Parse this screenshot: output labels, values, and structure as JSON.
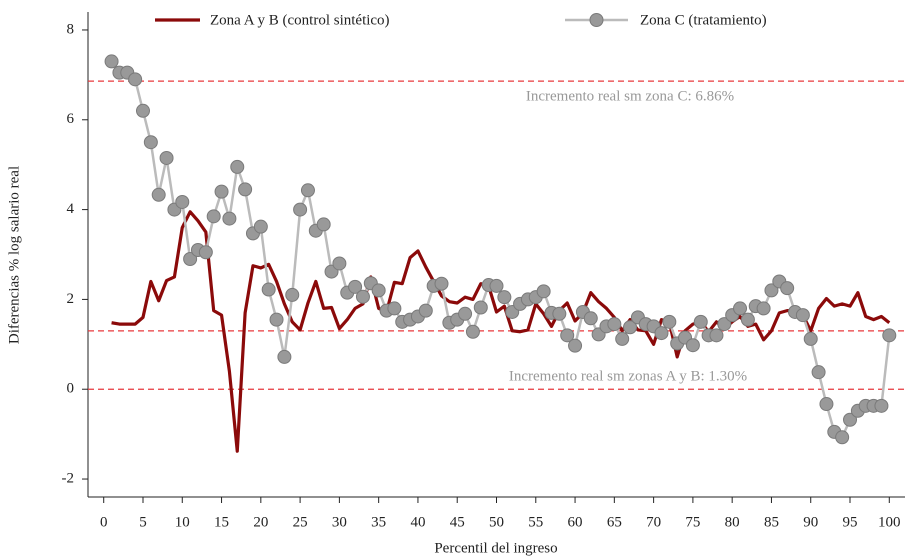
{
  "chart_data": {
    "type": "line",
    "xlabel": "Percentil del ingreso",
    "ylabel": "Diferencias % log salario real",
    "x": [
      1,
      2,
      3,
      4,
      5,
      6,
      7,
      8,
      9,
      10,
      11,
      12,
      13,
      14,
      15,
      16,
      17,
      18,
      19,
      20,
      21,
      22,
      23,
      24,
      25,
      26,
      27,
      28,
      29,
      30,
      31,
      32,
      33,
      34,
      35,
      36,
      37,
      38,
      39,
      40,
      41,
      42,
      43,
      44,
      45,
      46,
      47,
      48,
      49,
      50,
      51,
      52,
      53,
      54,
      55,
      56,
      57,
      58,
      59,
      60,
      61,
      62,
      63,
      64,
      65,
      66,
      67,
      68,
      69,
      70,
      71,
      72,
      73,
      74,
      75,
      76,
      77,
      78,
      79,
      80,
      81,
      82,
      83,
      84,
      85,
      86,
      87,
      88,
      89,
      90,
      91,
      92,
      93,
      94,
      95,
      96,
      97,
      98,
      99,
      100
    ],
    "series": [
      {
        "name": "Zona A y B (control sintético)",
        "color": "#8b0a0a",
        "markers": false,
        "values": [
          1.48,
          1.45,
          1.45,
          1.45,
          1.6,
          2.4,
          1.97,
          2.42,
          2.5,
          3.6,
          3.95,
          3.75,
          3.5,
          1.75,
          1.65,
          0.4,
          -1.38,
          1.7,
          2.75,
          2.7,
          2.78,
          2.4,
          1.9,
          1.5,
          1.32,
          1.92,
          2.4,
          1.8,
          1.82,
          1.35,
          1.55,
          1.8,
          1.9,
          2.5,
          1.8,
          1.72,
          2.38,
          2.35,
          2.93,
          3.08,
          2.72,
          2.4,
          2.08,
          1.95,
          1.92,
          2.05,
          2.0,
          2.35,
          2.3,
          1.72,
          1.85,
          1.3,
          1.28,
          1.32,
          1.9,
          1.68,
          1.4,
          1.75,
          1.92,
          1.52,
          1.7,
          2.15,
          1.95,
          1.8,
          1.6,
          1.3,
          1.55,
          1.32,
          1.3,
          1.0,
          1.55,
          1.5,
          0.72,
          1.3,
          1.45,
          1.5,
          1.28,
          1.5,
          1.35,
          1.5,
          1.62,
          1.4,
          1.45,
          1.1,
          1.3,
          1.7,
          1.75,
          1.75,
          1.65,
          1.3,
          1.8,
          2.02,
          1.85,
          1.9,
          1.85,
          2.15,
          1.62,
          1.55,
          1.62,
          1.48
        ]
      },
      {
        "name": "Zona C (tratamiento)",
        "color": "#bbbbbb",
        "markers": true,
        "values": [
          7.3,
          7.05,
          7.05,
          6.9,
          6.2,
          5.5,
          4.33,
          5.15,
          4.0,
          4.17,
          2.9,
          3.1,
          3.05,
          3.85,
          4.4,
          3.8,
          4.95,
          4.45,
          3.47,
          3.62,
          2.22,
          1.55,
          0.72,
          2.1,
          4.0,
          4.43,
          3.53,
          3.67,
          2.62,
          2.8,
          2.15,
          2.28,
          2.06,
          2.36,
          2.2,
          1.75,
          1.8,
          1.5,
          1.55,
          1.62,
          1.75,
          2.3,
          2.35,
          1.48,
          1.55,
          1.68,
          1.28,
          1.82,
          2.32,
          2.3,
          2.05,
          1.72,
          1.9,
          2.0,
          2.05,
          2.18,
          1.7,
          1.68,
          1.2,
          0.97,
          1.72,
          1.58,
          1.22,
          1.4,
          1.45,
          1.12,
          1.38,
          1.6,
          1.45,
          1.4,
          1.25,
          1.5,
          1.02,
          1.15,
          0.98,
          1.5,
          1.2,
          1.2,
          1.45,
          1.65,
          1.8,
          1.55,
          1.85,
          1.8,
          2.2,
          2.4,
          2.25,
          1.72,
          1.65,
          1.12,
          0.38,
          -0.33,
          -0.95,
          -1.07,
          -0.68,
          -0.48,
          -0.37,
          -0.37,
          -0.37,
          1.2
        ]
      }
    ],
    "hlines": [
      {
        "value": 6.86,
        "label": "Incremento real sm zona C: 6.86%"
      },
      {
        "value": 1.3,
        "label": "Incremento real sm zonas A y B: 1.30%"
      },
      {
        "value": 0
      }
    ],
    "hline_color": "#e8383d",
    "xlim": [
      -2,
      102
    ],
    "xticks": [
      0,
      5,
      10,
      15,
      20,
      25,
      30,
      35,
      40,
      45,
      50,
      55,
      60,
      65,
      70,
      75,
      80,
      85,
      90,
      95,
      100
    ],
    "ylim": [
      -2.4,
      8.4
    ],
    "yticks": [
      -2,
      0,
      2,
      4,
      6,
      8
    ]
  }
}
